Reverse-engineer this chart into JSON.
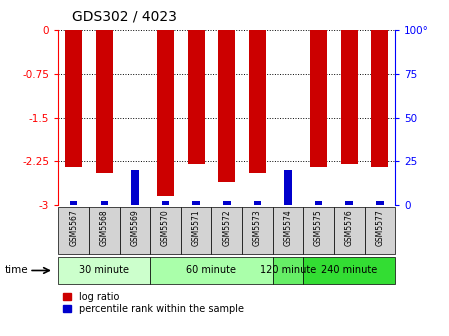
{
  "title": "GDS302 / 4023",
  "samples": [
    "GSM5567",
    "GSM5568",
    "GSM5569",
    "GSM5570",
    "GSM5571",
    "GSM5572",
    "GSM5573",
    "GSM5574",
    "GSM5575",
    "GSM5576",
    "GSM5577"
  ],
  "log_ratios": [
    -2.35,
    -2.45,
    0.0,
    -2.85,
    -2.3,
    -2.6,
    -2.45,
    0.0,
    -2.35,
    -2.3,
    -2.35
  ],
  "percentile_ranks": [
    2,
    2,
    20,
    2,
    2,
    2,
    2,
    20,
    2,
    2,
    2
  ],
  "groups": [
    {
      "label": "30 minute",
      "start": 0,
      "end": 2,
      "color": "#ccffcc"
    },
    {
      "label": "60 minute",
      "start": 3,
      "end": 6,
      "color": "#aaffaa"
    },
    {
      "label": "120 minute",
      "start": 7,
      "end": 7,
      "color": "#66ee66"
    },
    {
      "label": "240 minute",
      "start": 8,
      "end": 10,
      "color": "#33dd33"
    }
  ],
  "ylim_left": [
    -3.0,
    0.0
  ],
  "ylim_right": [
    0,
    100
  ],
  "yticks_left": [
    0,
    -0.75,
    -1.5,
    -2.25,
    -3.0
  ],
  "yticks_left_labels": [
    "0",
    "-0.75",
    "-1.5",
    "-2.25",
    "-3"
  ],
  "yticks_right": [
    0,
    25,
    50,
    75,
    100
  ],
  "yticks_right_labels": [
    "0",
    "25",
    "50",
    "75",
    "100°"
  ],
  "bar_color": "#cc0000",
  "percentile_color": "#0000cc",
  "bg_label": "#d3d3d3",
  "time_label": "time",
  "legend_ratio_label": "log ratio",
  "legend_percentile_label": "percentile rank within the sample"
}
